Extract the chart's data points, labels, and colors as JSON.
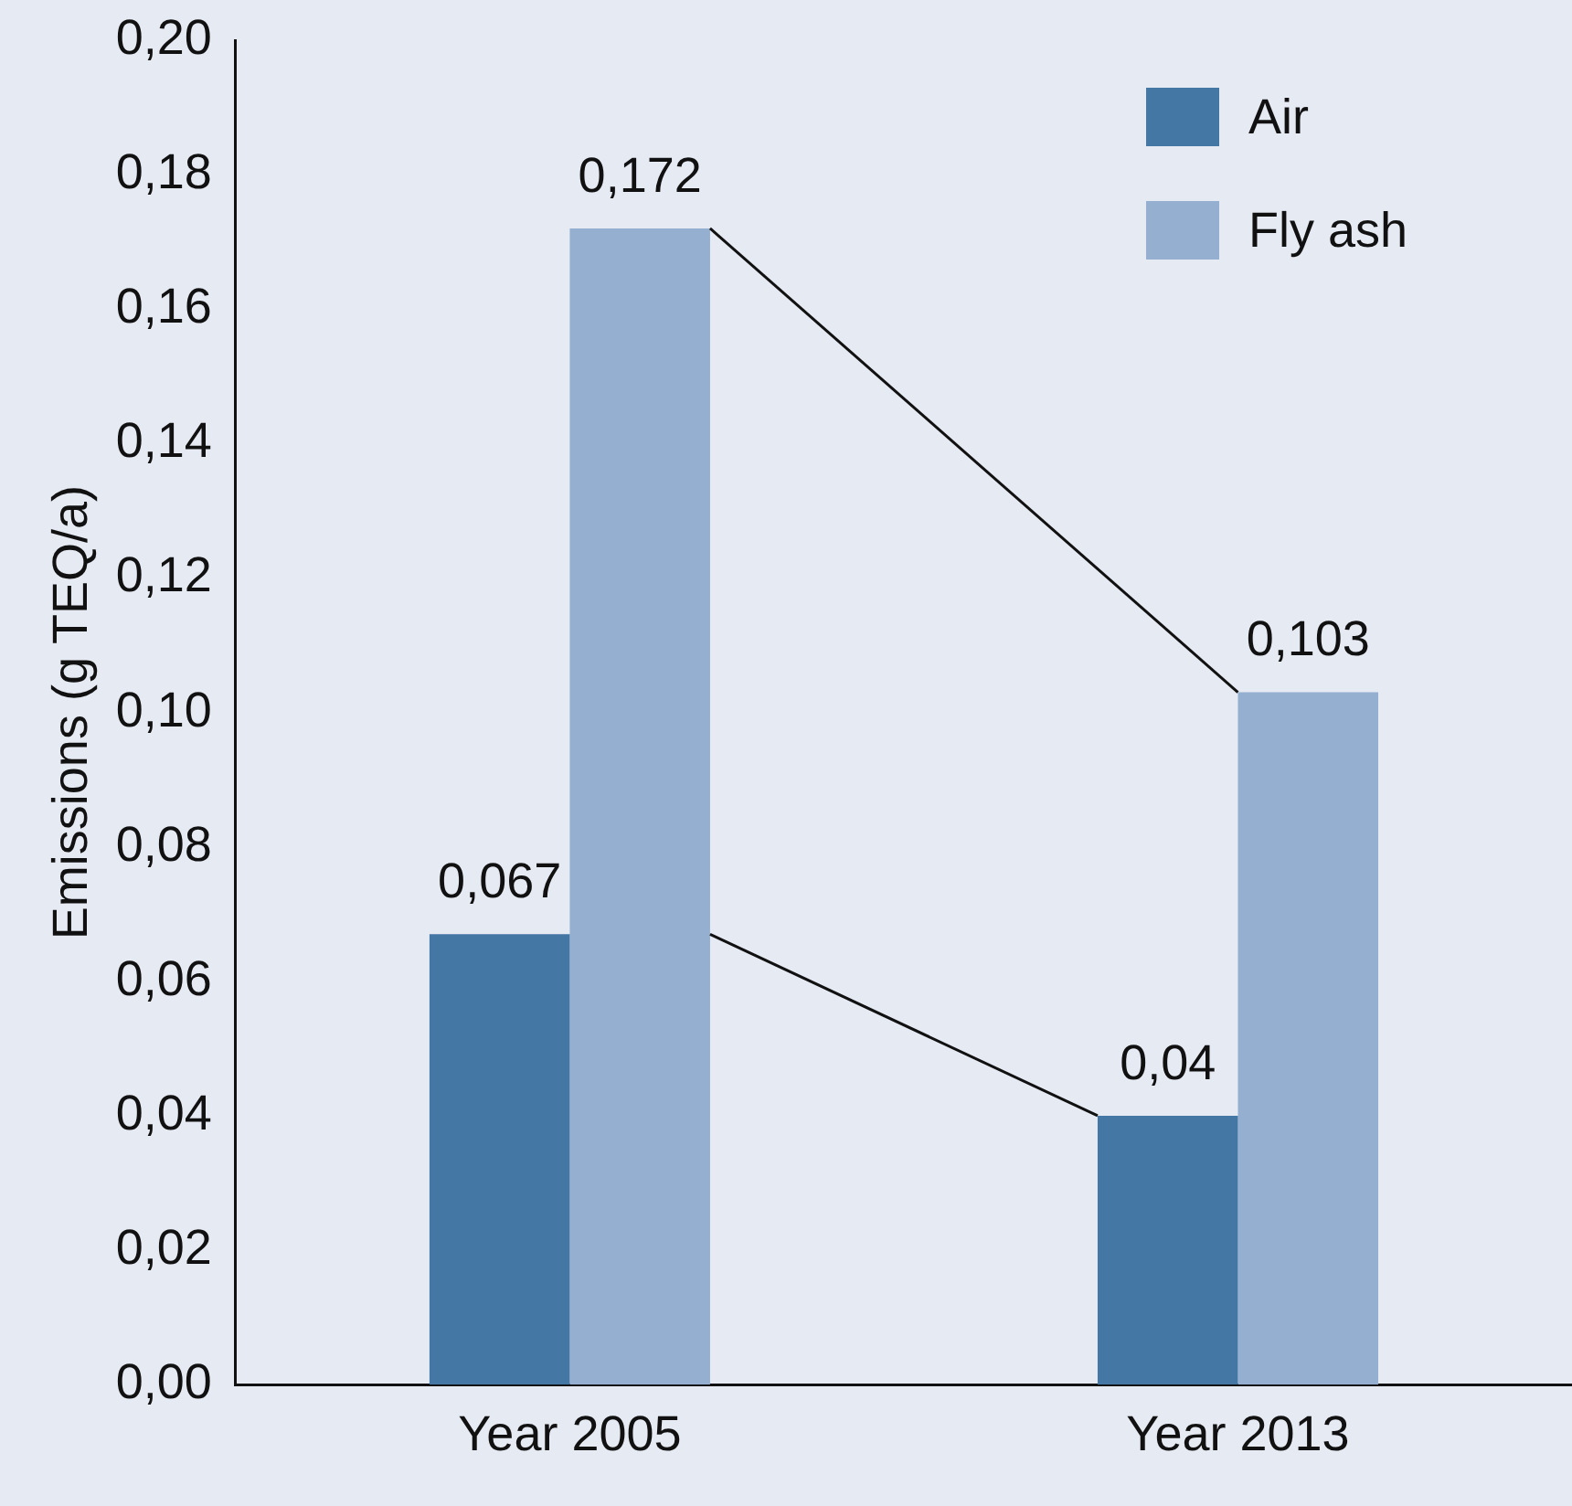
{
  "chart_data": {
    "type": "bar",
    "ylabel": "Emissions (g TEQ/a)",
    "categories": [
      "Year 2005",
      "Year 2013"
    ],
    "series": [
      {
        "name": "Air",
        "color": "#4577a5",
        "values": [
          0.067,
          0.04
        ]
      },
      {
        "name": "Fly ash",
        "color": "#94afcf",
        "values": [
          0.172,
          0.103
        ]
      }
    ],
    "ylim": [
      0,
      0.2
    ],
    "yticks": [
      {
        "value": 0,
        "label": "0,00"
      },
      {
        "value": 0.02,
        "label": "0,02"
      },
      {
        "value": 0.04,
        "label": "0,04"
      },
      {
        "value": 0.06,
        "label": "0,06"
      },
      {
        "value": 0.08,
        "label": "0,08"
      },
      {
        "value": 0.1,
        "label": "0,10"
      },
      {
        "value": 0.12,
        "label": "0,12"
      },
      {
        "value": 0.14,
        "label": "0,14"
      },
      {
        "value": 0.16,
        "label": "0,16"
      },
      {
        "value": 0.18,
        "label": "0,18"
      },
      {
        "value": 0.2,
        "label": "0,20"
      }
    ],
    "value_labels": [
      [
        "0,067",
        "0,04"
      ],
      [
        "0,172",
        "0,103"
      ]
    ],
    "grid": false,
    "legend": "top right"
  }
}
